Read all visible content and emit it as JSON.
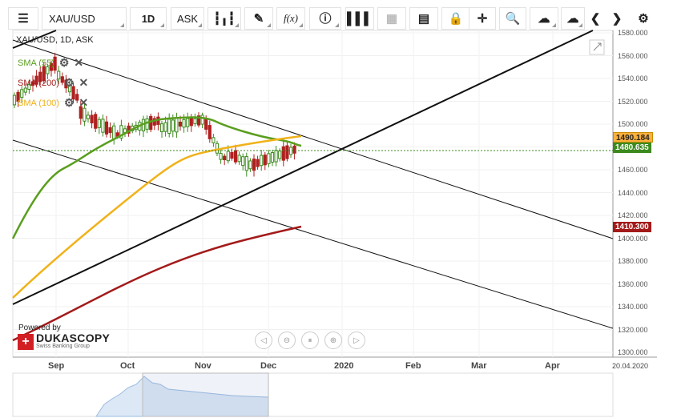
{
  "toolbar": {
    "menu_icon": "hamburger-icon",
    "symbol": "XAU/USD",
    "period": "1D",
    "side": "ASK",
    "buttons": [
      "candles-icon",
      "draw-icon",
      "fx-icon",
      "info-icon",
      "bars-icon",
      "calendar-icon",
      "save-layout-icon",
      "lock-icon",
      "crosshair-icon",
      "zoom-icon",
      "cloud-upload-icon",
      "cloud-download-icon",
      "chevron-left-icon",
      "chevron-right-icon",
      "gear-icon"
    ],
    "fx_label": "f(x)"
  },
  "instrument_label": "XAU/USD, 1D, ASK",
  "indicators": [
    {
      "label": "SMA (55)",
      "color": "#5a9e1e"
    },
    {
      "label": "SMA (200)",
      "color": "#a31a1a"
    },
    {
      "label": "SMA (100)",
      "color": "#f0b21a"
    }
  ],
  "branding": {
    "powered": "Powered by",
    "name": "DUKASCOPY",
    "sub": "Swiss Banking Group"
  },
  "price_axis": [
    "1580.000",
    "1560.000",
    "1540.000",
    "1520.000",
    "1500.000",
    "1480.000",
    "1460.000",
    "1440.000",
    "1420.000",
    "1400.000",
    "1380.000",
    "1360.000",
    "1340.000",
    "1320.000",
    "1300.000"
  ],
  "price_tags": [
    {
      "value": "1490.184",
      "color": "#f0a500"
    },
    {
      "value": "1480.635",
      "color": "#3c8a1e"
    },
    {
      "value": "1410.300",
      "color": "#a31a1a"
    }
  ],
  "time_axis": [
    "Sep",
    "Oct",
    "Nov",
    "Dec",
    "2020",
    "Feb",
    "Mar",
    "Apr"
  ],
  "date_label": "20.04.2020",
  "colors": {
    "bull": "#3c8a1e",
    "bear": "#b02020",
    "sma55": "#5a9e1e",
    "sma100": "#f0b21a",
    "sma200": "#a31a1a"
  }
}
